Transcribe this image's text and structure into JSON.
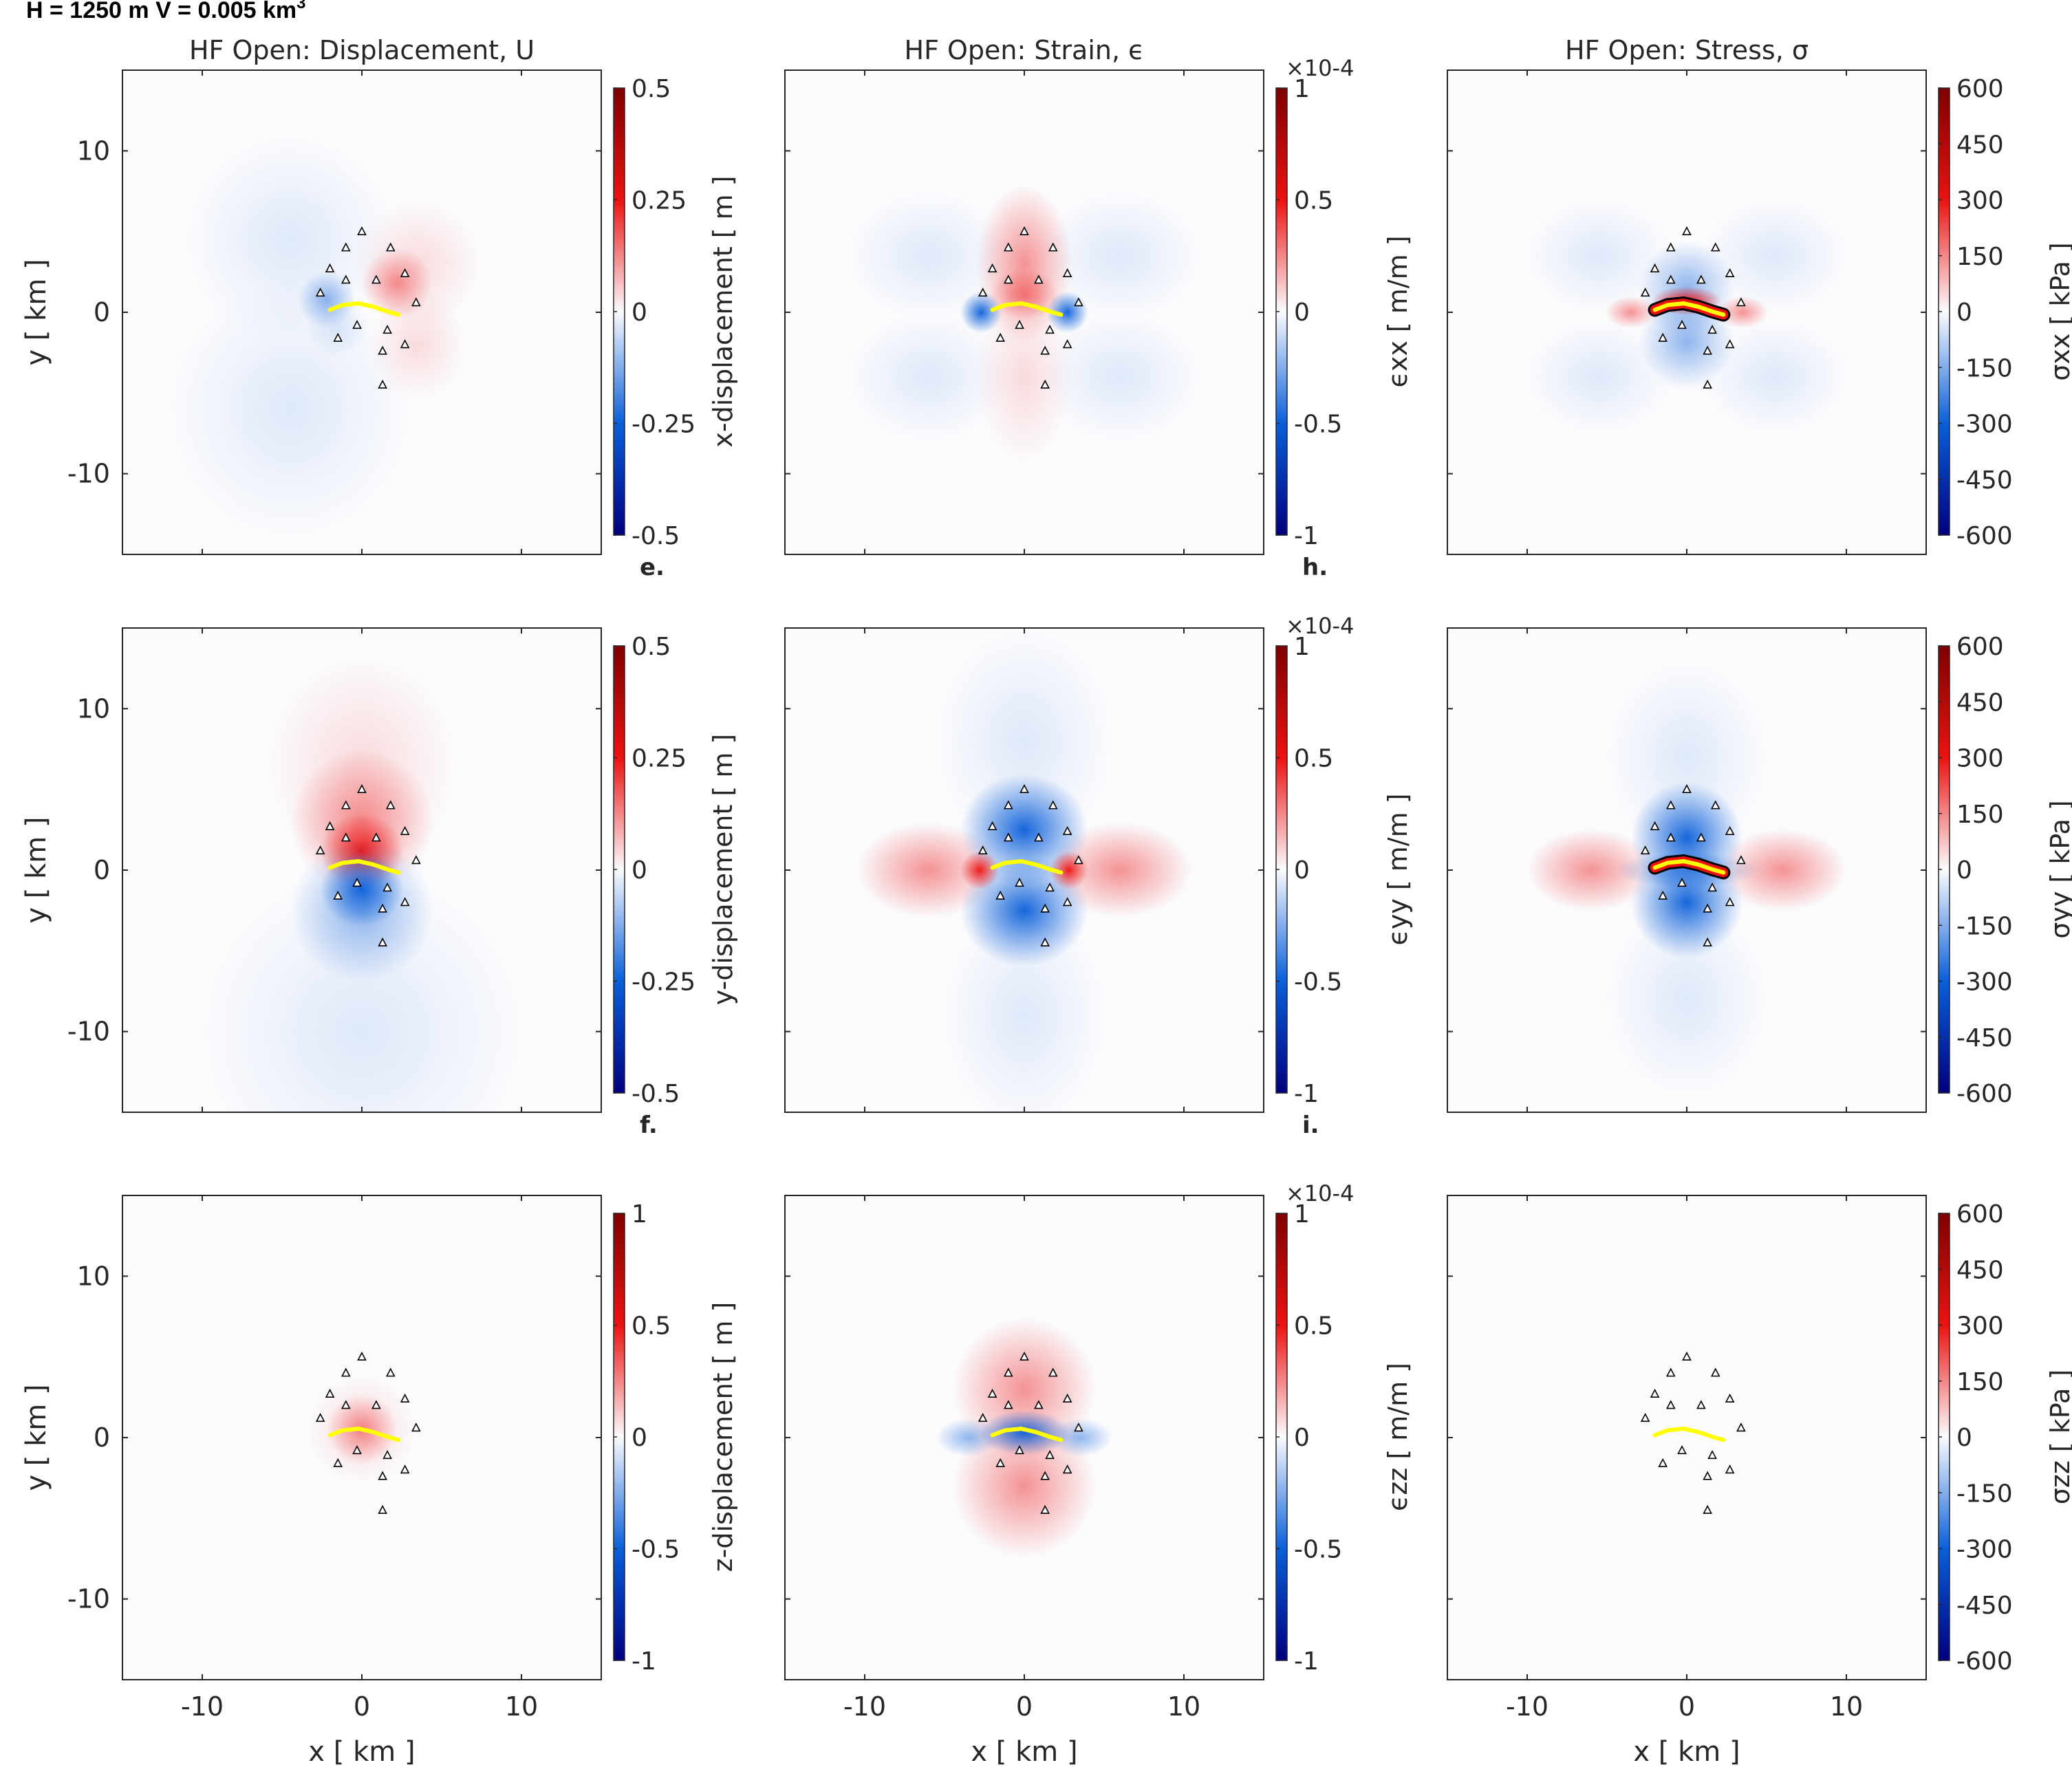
{
  "header": {
    "text": "H = 1250 m   V = 0.005 km",
    "superscript": "3"
  },
  "colors": {
    "negative_end": "#00007f",
    "negative_mid": "#0a5fd9",
    "zero": "#fbfbfd",
    "positive_mid": "#ec1212",
    "positive_end": "#7f0000",
    "dike": "#ffff00",
    "stations": "#000000"
  },
  "stations": [
    {
      "x": 0,
      "y": 5.0
    },
    {
      "x": -1.0,
      "y": 4.0
    },
    {
      "x": 1.8,
      "y": 4.0
    },
    {
      "x": -2.0,
      "y": 2.7
    },
    {
      "x": -1.0,
      "y": 2.0
    },
    {
      "x": 0.9,
      "y": 2.0
    },
    {
      "x": 2.7,
      "y": 2.4
    },
    {
      "x": -2.6,
      "y": 1.2
    },
    {
      "x": 3.4,
      "y": 0.6
    },
    {
      "x": -1.5,
      "y": -1.6
    },
    {
      "x": -0.3,
      "y": -0.8
    },
    {
      "x": 1.6,
      "y": -1.1
    },
    {
      "x": 2.7,
      "y": -2.0
    },
    {
      "x": 1.3,
      "y": -2.4
    },
    {
      "x": 1.3,
      "y": -4.5
    }
  ],
  "dike_trace": {
    "x": [
      -2.0,
      -1.2,
      -0.2,
      0.7,
      1.6,
      2.3
    ],
    "y": [
      0.15,
      0.45,
      0.55,
      0.35,
      0.05,
      -0.15
    ]
  },
  "column_titles": [
    "HF Open: Displacement, U",
    "HF Open: Strain, ϵ",
    "HF Open: Stress, σ"
  ],
  "panel_letters": [
    "e.",
    "h.",
    "f.",
    "i."
  ],
  "chart_data": [
    {
      "type": "heatmap",
      "title": "HF Open: Displacement, U",
      "xlabel": "",
      "ylabel": "y [ km ]",
      "xlim": [
        -15,
        15
      ],
      "ylim": [
        -15,
        15
      ],
      "xticks": [
        "",
        "",
        ""
      ],
      "yticks": [
        "-10",
        "0",
        "10"
      ],
      "colorbar": {
        "label": "x-displacement [ m ]",
        "range": [
          -0.5,
          0.5
        ],
        "ticks": [
          "-0.5",
          "-0.25",
          "0",
          "0.25",
          "0.5"
        ]
      },
      "pattern": "x-displacement"
    },
    {
      "type": "heatmap",
      "title": "HF Open: Strain, ϵ",
      "xlabel": "",
      "ylabel": "",
      "xlim": [
        -15,
        15
      ],
      "ylim": [
        -15,
        15
      ],
      "xticks": [
        "",
        "",
        ""
      ],
      "yticks": [
        "",
        "",
        ""
      ],
      "colorbar": {
        "label": "ϵxx [ m/m ]",
        "range": [
          -1,
          1
        ],
        "ticks": [
          "-1",
          "-0.5",
          "0",
          "0.5",
          "1"
        ],
        "exponent": "×10-4"
      },
      "pattern": "exx"
    },
    {
      "type": "heatmap",
      "title": "HF Open: Stress, σ",
      "xlabel": "",
      "ylabel": "",
      "xlim": [
        -15,
        15
      ],
      "ylim": [
        -15,
        15
      ],
      "xticks": [
        "",
        "",
        ""
      ],
      "yticks": [
        "",
        "",
        ""
      ],
      "colorbar": {
        "label": "σxx [ kPa ]",
        "range": [
          -600,
          600
        ],
        "ticks": [
          "-600",
          "-450",
          "-300",
          "-150",
          "0",
          "150",
          "300",
          "450",
          "600"
        ]
      },
      "pattern": "sxx"
    },
    {
      "type": "heatmap",
      "title": "",
      "xlabel": "",
      "ylabel": "y [ km ]",
      "xlim": [
        -15,
        15
      ],
      "ylim": [
        -15,
        15
      ],
      "xticks": [
        "",
        "",
        ""
      ],
      "yticks": [
        "-10",
        "0",
        "10"
      ],
      "colorbar": {
        "label": "y-displacement [ m ]",
        "range": [
          -0.5,
          0.5
        ],
        "ticks": [
          "-0.5",
          "-0.25",
          "0",
          "0.25",
          "0.5"
        ]
      },
      "pattern": "y-displacement"
    },
    {
      "type": "heatmap",
      "title": "",
      "xlabel": "",
      "ylabel": "",
      "xlim": [
        -15,
        15
      ],
      "ylim": [
        -15,
        15
      ],
      "xticks": [
        "",
        "",
        ""
      ],
      "yticks": [
        "",
        "",
        ""
      ],
      "colorbar": {
        "label": "ϵyy [ m/m ]",
        "range": [
          -1,
          1
        ],
        "ticks": [
          "-1",
          "-0.5",
          "0",
          "0.5",
          "1"
        ],
        "exponent": "×10-4"
      },
      "pattern": "eyy"
    },
    {
      "type": "heatmap",
      "title": "",
      "xlabel": "",
      "ylabel": "",
      "xlim": [
        -15,
        15
      ],
      "ylim": [
        -15,
        15
      ],
      "xticks": [
        "",
        "",
        ""
      ],
      "yticks": [
        "",
        "",
        ""
      ],
      "colorbar": {
        "label": "σyy [ kPa ]",
        "range": [
          -600,
          600
        ],
        "ticks": [
          "-600",
          "-450",
          "-300",
          "-150",
          "0",
          "150",
          "300",
          "450",
          "600"
        ]
      },
      "pattern": "syy"
    },
    {
      "type": "heatmap",
      "title": "",
      "xlabel": "x [ km ]",
      "ylabel": "y [ km ]",
      "xlim": [
        -15,
        15
      ],
      "ylim": [
        -15,
        15
      ],
      "xticks": [
        "-10",
        "0",
        "10"
      ],
      "yticks": [
        "-10",
        "0",
        "10"
      ],
      "colorbar": {
        "label": "z-displacement [ m ]",
        "range": [
          -1,
          1
        ],
        "ticks": [
          "-1",
          "-0.5",
          "0",
          "0.5",
          "1"
        ]
      },
      "pattern": "z-displacement"
    },
    {
      "type": "heatmap",
      "title": "",
      "xlabel": "x [ km ]",
      "ylabel": "",
      "xlim": [
        -15,
        15
      ],
      "ylim": [
        -15,
        15
      ],
      "xticks": [
        "-10",
        "0",
        "10"
      ],
      "yticks": [
        "",
        "",
        ""
      ],
      "colorbar": {
        "label": "ϵzz [ m/m ]",
        "range": [
          -1,
          1
        ],
        "ticks": [
          "-1",
          "-0.5",
          "0",
          "0.5",
          "1"
        ],
        "exponent": "×10-4"
      },
      "pattern": "ezz"
    },
    {
      "type": "heatmap",
      "title": "",
      "xlabel": "x [ km ]",
      "ylabel": "",
      "xlim": [
        -15,
        15
      ],
      "ylim": [
        -15,
        15
      ],
      "xticks": [
        "-10",
        "0",
        "10"
      ],
      "yticks": [
        "",
        "",
        ""
      ],
      "colorbar": {
        "label": "σzz [ kPa ]",
        "range": [
          -600,
          600
        ],
        "ticks": [
          "-600",
          "-450",
          "-300",
          "-150",
          "0",
          "150",
          "300",
          "450",
          "600"
        ]
      },
      "pattern": "szz"
    }
  ]
}
